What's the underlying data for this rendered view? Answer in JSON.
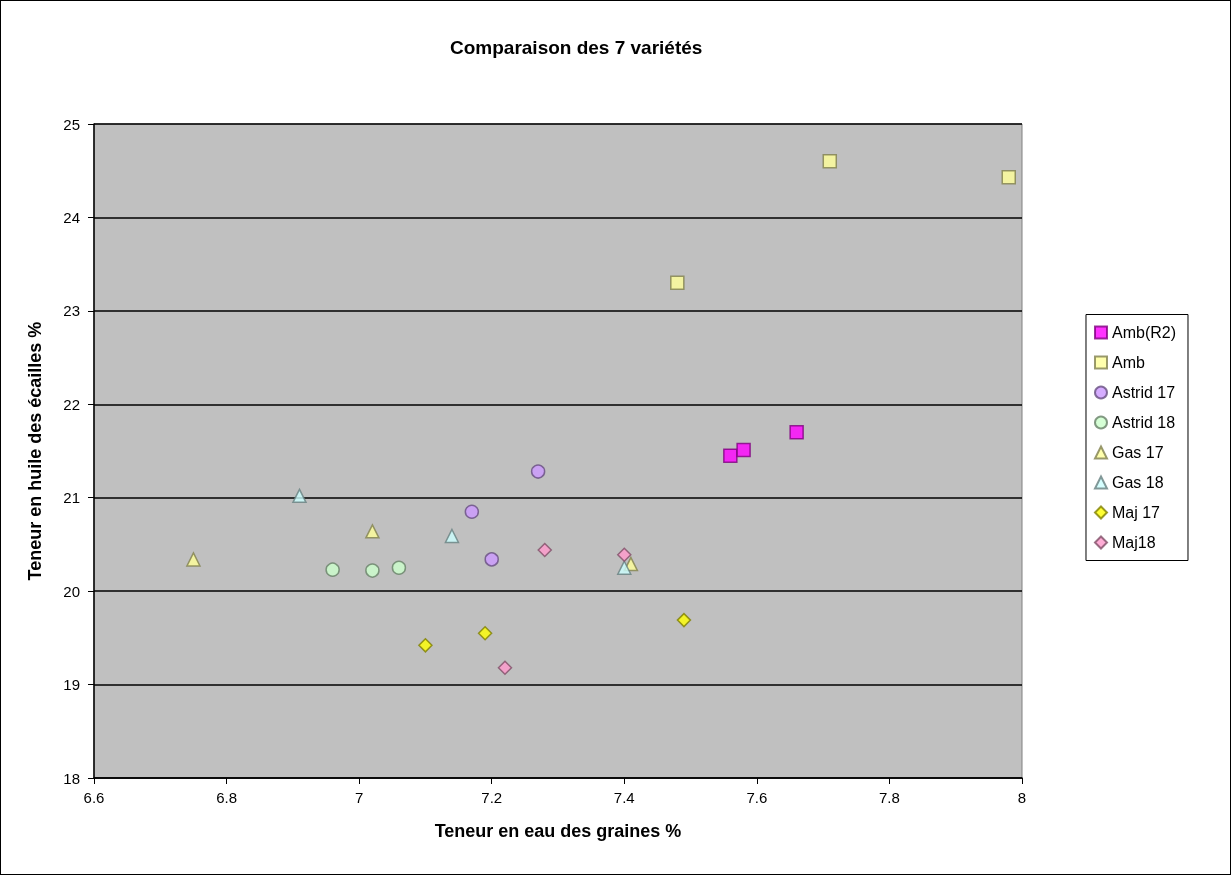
{
  "chart_data": {
    "type": "scatter",
    "title": "Comparaison des 7 variétés",
    "xlabel": "Teneur en eau des graines %",
    "ylabel": "Teneur en huile des écailles %",
    "xlim": [
      6.6,
      8
    ],
    "xticks": [
      6.6,
      6.8,
      7,
      7.2,
      7.4,
      7.6,
      7.8,
      8
    ],
    "ylim": [
      18,
      25
    ],
    "yticks": [
      18,
      19,
      20,
      21,
      22,
      23,
      24,
      25
    ],
    "grid": "y",
    "legend": "right",
    "series": [
      {
        "name": "Amb(R2)",
        "color": "#ff00ff",
        "marker": "square",
        "x": [
          7.56,
          7.58,
          7.66
        ],
        "values": [
          21.45,
          21.51,
          21.7
        ]
      },
      {
        "name": "Amb",
        "color": "#ffff99",
        "marker": "square",
        "x": [
          7.71,
          7.98,
          7.48
        ],
        "values": [
          24.6,
          24.43,
          23.3
        ]
      },
      {
        "name": "Astrid 17",
        "color": "#cc99ff",
        "marker": "circle",
        "x": [
          7.27,
          7.17,
          7.2
        ],
        "values": [
          21.28,
          20.85,
          20.34
        ]
      },
      {
        "name": "Astrid 18",
        "color": "#ccffcc",
        "marker": "circle",
        "x": [
          6.96,
          7.02,
          7.06
        ],
        "values": [
          20.23,
          20.22,
          20.25
        ]
      },
      {
        "name": "Gas 17",
        "color": "#ffff99",
        "marker": "triangle",
        "x": [
          6.75,
          7.02,
          7.41
        ],
        "values": [
          20.34,
          20.64,
          20.29
        ]
      },
      {
        "name": "Gas 18",
        "color": "#ccffff",
        "marker": "triangle",
        "x": [
          6.91,
          7.14,
          7.4
        ],
        "values": [
          21.02,
          20.59,
          20.25
        ]
      },
      {
        "name": "Maj 17",
        "color": "#ffff00",
        "marker": "diamond",
        "x": [
          7.1,
          7.19,
          7.49
        ],
        "values": [
          19.42,
          19.55,
          19.69
        ]
      },
      {
        "name": "Maj18",
        "color": "#ff99cc",
        "marker": "diamond",
        "x": [
          7.28,
          7.4,
          7.22
        ],
        "values": [
          20.44,
          20.39,
          19.18
        ]
      }
    ]
  }
}
